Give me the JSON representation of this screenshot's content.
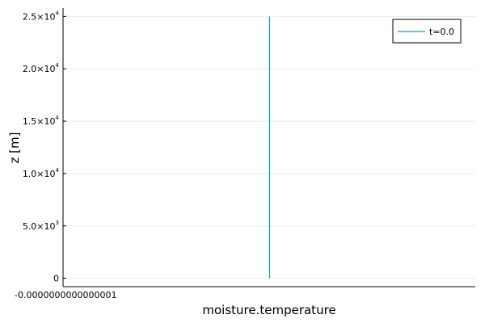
{
  "chart_data": {
    "type": "line",
    "title": "",
    "xlabel": "moisture.temperature",
    "ylabel": "z [m]",
    "ylim": [
      -800,
      25800
    ],
    "grid": true,
    "legend_position": "top-right",
    "x_ticks": [
      {
        "label": "-0.0000000000000001"
      }
    ],
    "y_ticks": [
      {
        "value": 0,
        "mantissa": "0",
        "exponent": ""
      },
      {
        "value": 5000,
        "mantissa": "5.0×10",
        "exponent": "3"
      },
      {
        "value": 10000,
        "mantissa": "1.0×10",
        "exponent": "4"
      },
      {
        "value": 15000,
        "mantissa": "1.5×10",
        "exponent": "4"
      },
      {
        "value": 20000,
        "mantissa": "2.0×10",
        "exponent": "4"
      },
      {
        "value": 25000,
        "mantissa": "2.5×10",
        "exponent": "4"
      }
    ],
    "series": [
      {
        "name": "t=0.0",
        "color": "#009AFA",
        "x": [
          -1e-16,
          -1e-16
        ],
        "y": [
          0,
          25000
        ]
      }
    ]
  }
}
